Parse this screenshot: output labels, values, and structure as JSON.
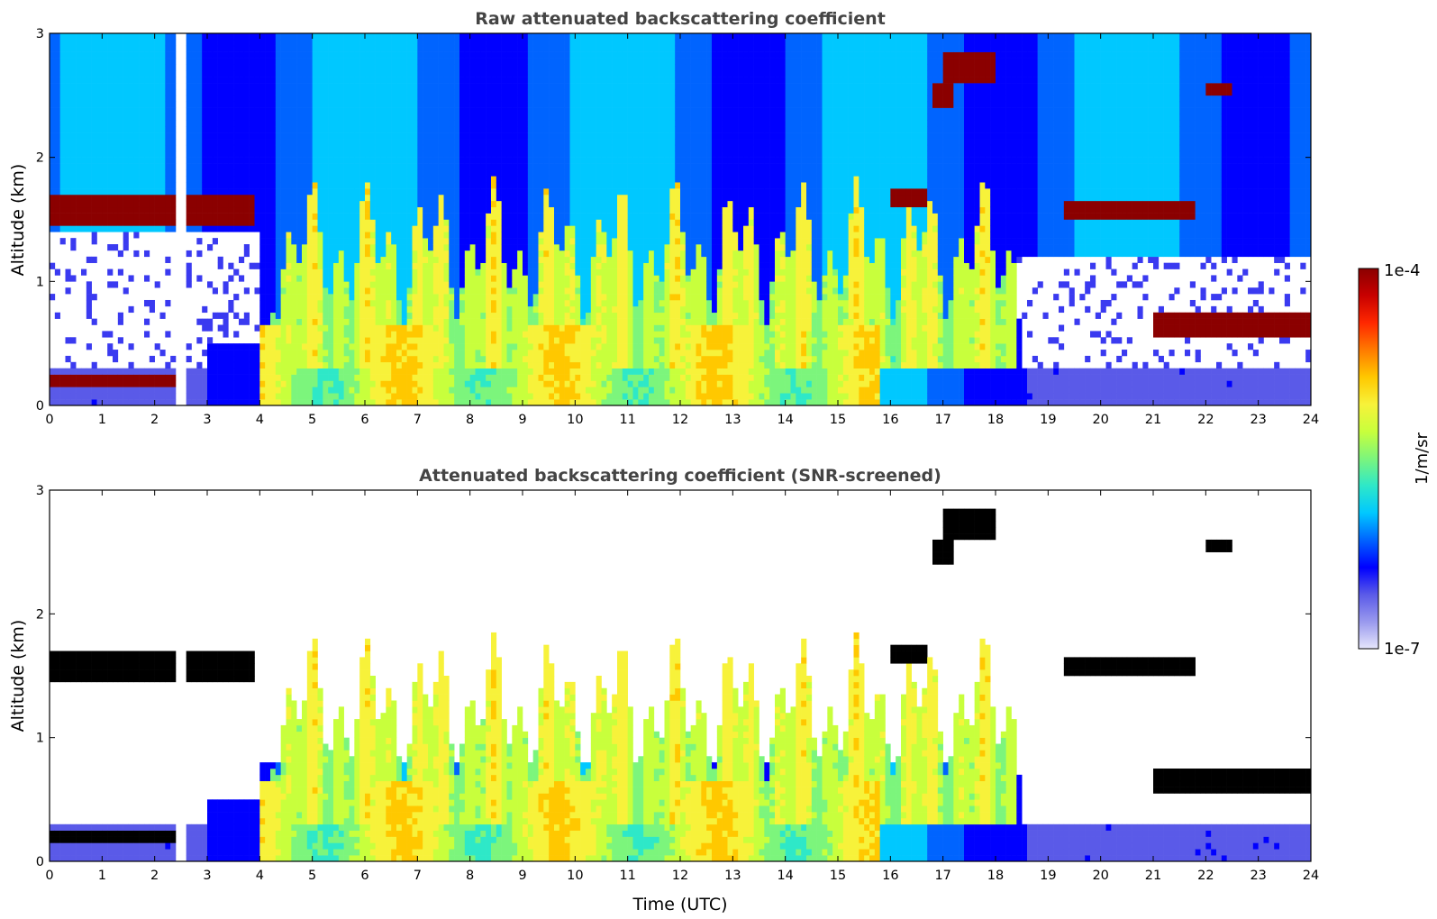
{
  "colors": {
    "background": "#ffffff",
    "axes": "#000000",
    "title_text": "#444444",
    "masked": "#ffffff",
    "saturated_screened": "#000000",
    "colormap_jet_low_to_high": [
      "#e6e6fb",
      "#9999ee",
      "#5a5ae8",
      "#0000ff",
      "#0064ff",
      "#00c8ff",
      "#2ee8c8",
      "#7cf57c",
      "#c8ff3c",
      "#f7f23a",
      "#ffc800",
      "#ff7a00",
      "#ff2800",
      "#c80000",
      "#8b0000"
    ]
  },
  "chart_data": [
    {
      "type": "heatmap",
      "title": "Raw attenuated backscattering coefficient",
      "xlabel": "",
      "ylabel": "Altitude (km)",
      "xlim": [
        0,
        24
      ],
      "ylim": [
        0,
        3
      ],
      "xticks": [
        "0",
        "1",
        "2",
        "3",
        "4",
        "5",
        "6",
        "7",
        "8",
        "9",
        "10",
        "11",
        "12",
        "13",
        "14",
        "15",
        "16",
        "17",
        "18",
        "19",
        "20",
        "21",
        "22",
        "23",
        "24"
      ],
      "yticks": [
        "0",
        "1",
        "2",
        "3"
      ],
      "features": [
        {
          "name": "boundary-layer-aerosol",
          "t_start": 4.0,
          "t_end": 15.8,
          "alt_bottom": 0.0,
          "alt_top": 0.65,
          "level": 0.6
        },
        {
          "name": "precipitation-fallstreaks",
          "t_start": 4.2,
          "t_end": 18.4,
          "alt_bottom": 0.3,
          "alt_top": 2.0,
          "level": 0.55
        },
        {
          "name": "low-cloud-night",
          "t_start": 0.0,
          "t_end": 2.5,
          "alt_bottom": 0.15,
          "alt_top": 0.25,
          "level": 1.0
        },
        {
          "name": "cloud-1.6km-morning",
          "t_start": 0.0,
          "t_end": 3.9,
          "alt_bottom": 1.45,
          "alt_top": 1.7,
          "level": 0.95
        },
        {
          "name": "cloud-1.6km-evening",
          "t_start": 19.3,
          "t_end": 21.8,
          "alt_bottom": 1.5,
          "alt_top": 1.65,
          "level": 1.0
        },
        {
          "name": "cloud-0.65km-night",
          "t_start": 21.0,
          "t_end": 24.0,
          "alt_bottom": 0.55,
          "alt_top": 0.75,
          "level": 1.0
        },
        {
          "name": "mid-cloud-2.7km",
          "t_start": 17.0,
          "t_end": 18.0,
          "alt_bottom": 2.6,
          "alt_top": 2.85,
          "level": 1.0
        },
        {
          "name": "mid-cloud-2.5km",
          "t_start": 16.8,
          "t_end": 17.2,
          "alt_bottom": 2.4,
          "alt_top": 2.6,
          "level": 1.0
        },
        {
          "name": "cloud-1.7km-afternoon",
          "t_start": 16.0,
          "t_end": 16.7,
          "alt_bottom": 1.6,
          "alt_top": 1.75,
          "level": 1.0
        },
        {
          "name": "cloud-2.6km",
          "t_start": 22.0,
          "t_end": 22.5,
          "alt_bottom": 2.5,
          "alt_top": 2.6,
          "level": 1.0
        },
        {
          "name": "surface-layer-night",
          "t_start": 18.6,
          "t_end": 24.0,
          "alt_bottom": 0.0,
          "alt_top": 0.3,
          "level": 0.1
        }
      ],
      "data_gaps": [
        [
          2.45,
          2.6
        ]
      ]
    },
    {
      "type": "heatmap",
      "title": "Attenuated backscattering coefficient (SNR-screened)",
      "xlabel": "Time (UTC)",
      "ylabel": "Altitude (km)",
      "xlim": [
        0,
        24
      ],
      "ylim": [
        0,
        3
      ],
      "xticks": [
        "0",
        "1",
        "2",
        "3",
        "4",
        "5",
        "6",
        "7",
        "8",
        "9",
        "10",
        "11",
        "12",
        "13",
        "14",
        "15",
        "16",
        "17",
        "18",
        "19",
        "20",
        "21",
        "22",
        "23",
        "24"
      ],
      "yticks": [
        "0",
        "1",
        "2",
        "3"
      ],
      "screening": "low SNR pixels masked white; saturated pixels black",
      "data_gaps": [
        [
          2.45,
          2.6
        ]
      ]
    }
  ],
  "colorbar": {
    "label": "1/m/sr",
    "max_label": "1e-4",
    "min_label": "1e-7",
    "range": [
      1e-07,
      0.0001
    ],
    "scale": "log"
  }
}
